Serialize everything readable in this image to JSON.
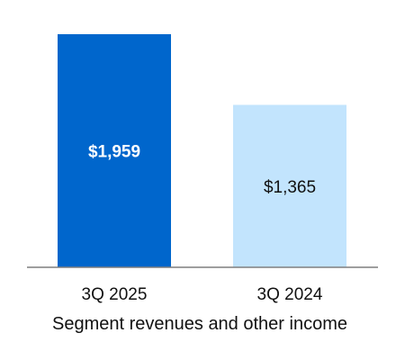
{
  "chart_data": {
    "type": "bar",
    "categories": [
      "3Q 2025",
      "3Q 2024"
    ],
    "values": [
      1959,
      1365
    ],
    "data_labels": [
      "$1,959",
      "$1,365"
    ],
    "bar_colors": [
      "#0066cc",
      "#c2e4fd"
    ],
    "label_colors": [
      "#ffffff",
      "#111111"
    ],
    "label_bold": [
      true,
      false
    ],
    "title": "",
    "xlabel": "Segment revenues and other income",
    "ylabel": "",
    "ylim": [
      0,
      1959
    ],
    "grid": false,
    "legend": "none",
    "axis_color": "#7f7f7f"
  }
}
